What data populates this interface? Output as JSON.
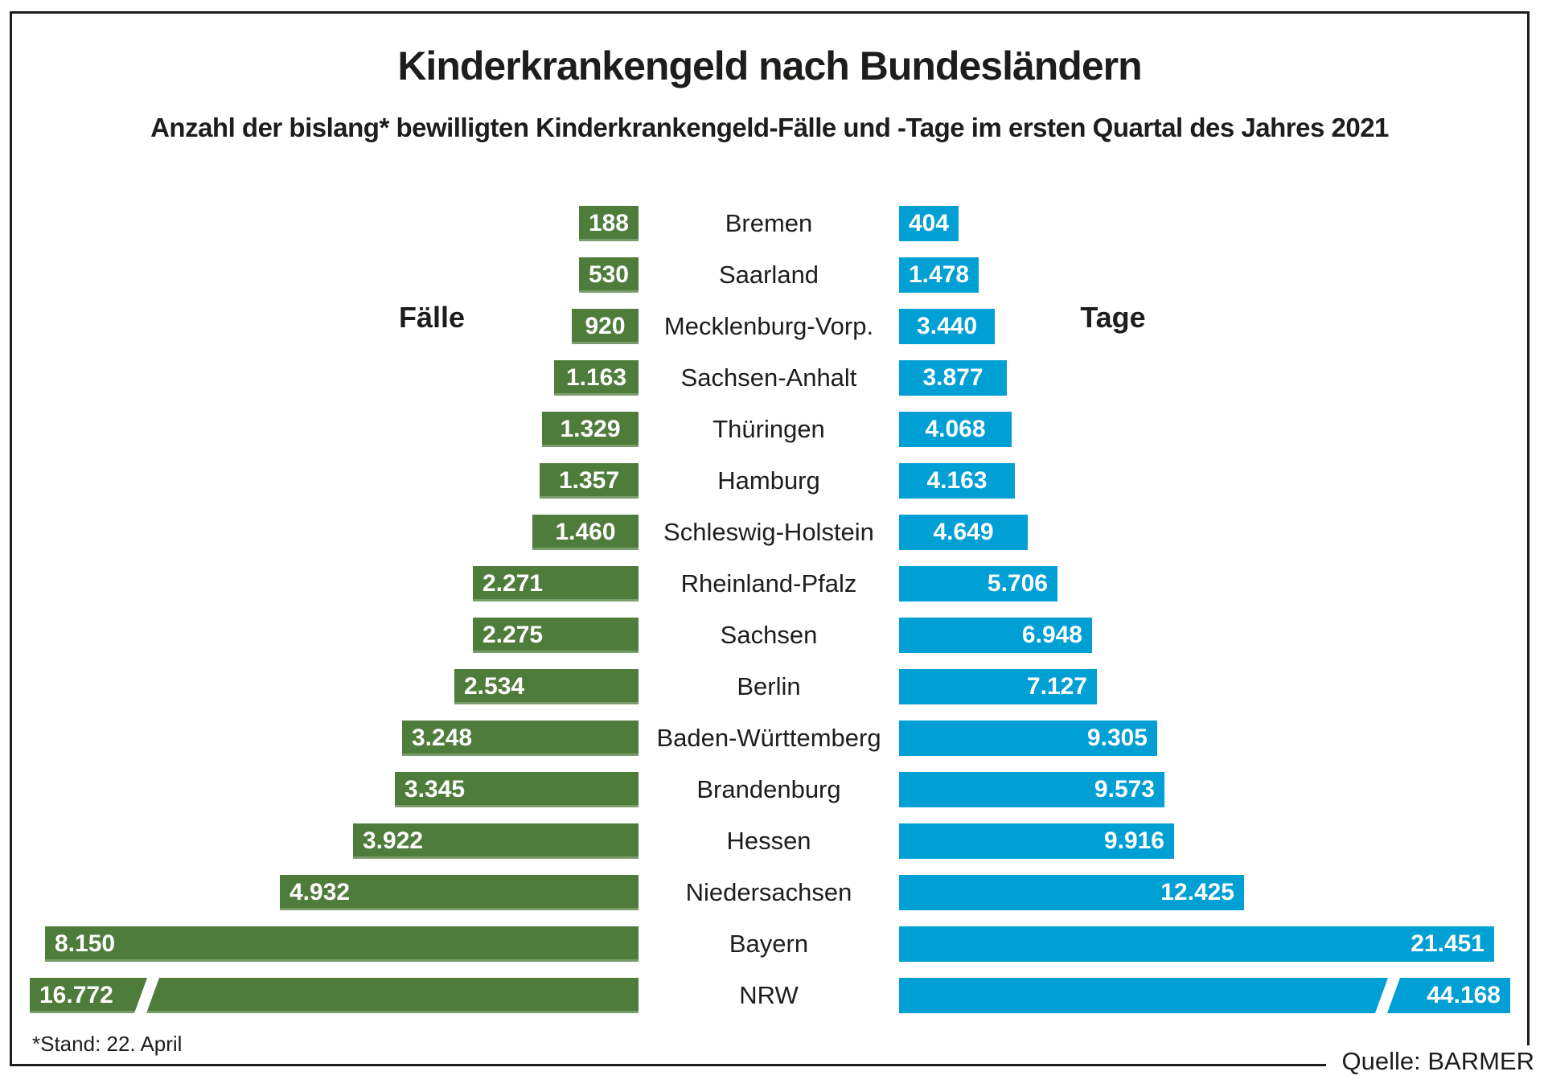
{
  "title": "Kinderkrankengeld nach Bundesländern",
  "subtitle": "Anzahl der bislang* bewilligten Kinderkrankengeld-Fälle und -Tage im ersten Quartal des Jahres 2021",
  "left_axis_label": "Fälle",
  "right_axis_label": "Tage",
  "footnote": "*Stand: 22. April",
  "source": "Quelle: BARMER",
  "colors": {
    "faelle_green": "#4e7c3b",
    "tage_blue": "#009fd4",
    "text": "#1d1d1b",
    "background": "#ffffff",
    "bar_value_text": "#ffffff"
  },
  "chart_data": {
    "type": "bar",
    "orientation": "horizontal-diverging",
    "title": "Kinderkrankengeld nach Bundesländern",
    "subtitle": "Anzahl der bislang* bewilligten Kinderkrankengeld-Fälle und -Tage im ersten Quartal des Jahres 2021",
    "categories": [
      "Bremen",
      "Saarland",
      "Mecklenburg-Vorp.",
      "Sachsen-Anhalt",
      "Thüringen",
      "Hamburg",
      "Schleswig-Holstein",
      "Rheinland-Pfalz",
      "Sachsen",
      "Berlin",
      "Baden-Württemberg",
      "Brandenburg",
      "Hessen",
      "Niedersachsen",
      "Bayern",
      "NRW"
    ],
    "series": [
      {
        "name": "Fälle",
        "side": "left",
        "color": "#4e7c3b",
        "values": [
          188,
          530,
          920,
          1163,
          1329,
          1357,
          1460,
          2271,
          2275,
          2534,
          3248,
          3345,
          3922,
          4932,
          8150,
          16772
        ],
        "labels": [
          "188",
          "530",
          "920",
          "1.163",
          "1.329",
          "1.357",
          "1.460",
          "2.271",
          "2.275",
          "2.534",
          "3.248",
          "3.345",
          "3.922",
          "4.932",
          "8.150",
          "16.772"
        ]
      },
      {
        "name": "Tage",
        "side": "right",
        "color": "#009fd4",
        "values": [
          404,
          1478,
          3440,
          3877,
          4068,
          4163,
          4649,
          5706,
          6948,
          7127,
          9305,
          9573,
          9916,
          12425,
          21451,
          44168
        ],
        "labels": [
          "404",
          "1.478",
          "3.440",
          "3.877",
          "4.068",
          "4.163",
          "4.649",
          "5.706",
          "6.948",
          "7.127",
          "9.305",
          "9.573",
          "9.916",
          "12.425",
          "21.451",
          "44.168"
        ]
      }
    ],
    "sort": "ascending by value, smallest at top",
    "broken_bar_category": "NRW",
    "broken_bar_note": "NRW bars are truncated with a diagonal break mark because values exceed the plot width",
    "value_labels": "inside bars, white; centered in short bars, edge-aligned in long bars",
    "grid": false,
    "legend_position": "series names shown as inline labels 'Fälle' (left) and 'Tage' (right) beside the third row"
  }
}
